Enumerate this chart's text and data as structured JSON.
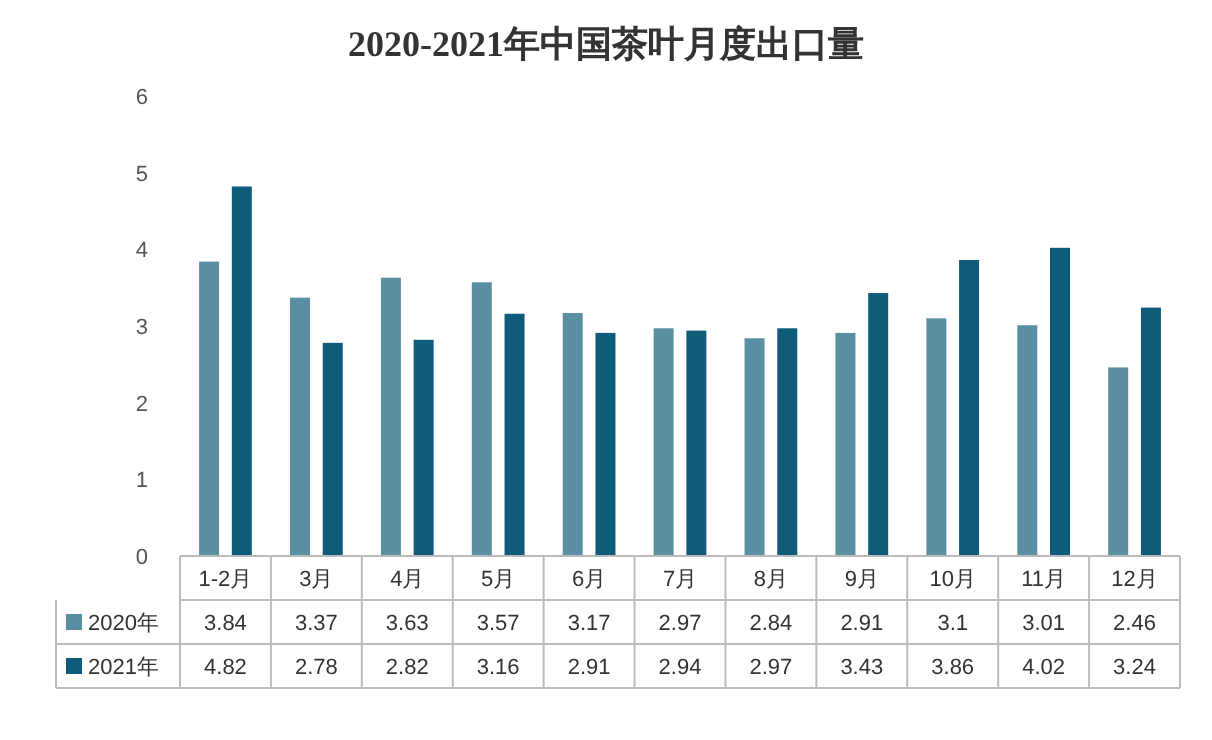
{
  "chart_data": {
    "type": "bar",
    "title": "2020-2021年中国茶叶月度出口量",
    "categories": [
      "1-2月",
      "3月",
      "4月",
      "5月",
      "6月",
      "7月",
      "8月",
      "9月",
      "10月",
      "11月",
      "12月"
    ],
    "series": [
      {
        "name": "2020年",
        "color": "#5a8fa3",
        "values": [
          3.84,
          3.37,
          3.63,
          3.57,
          3.17,
          2.97,
          2.84,
          2.91,
          3.1,
          3.01,
          2.46
        ]
      },
      {
        "name": "2021年",
        "color": "#0f5b7a",
        "values": [
          4.82,
          2.78,
          2.82,
          3.16,
          2.91,
          2.94,
          2.97,
          3.43,
          3.86,
          4.02,
          3.24
        ]
      }
    ],
    "ylim": [
      0,
      6
    ],
    "yticks": [
      0,
      1,
      2,
      3,
      4,
      5,
      6
    ],
    "legend": "bottom",
    "data_labels": true
  }
}
